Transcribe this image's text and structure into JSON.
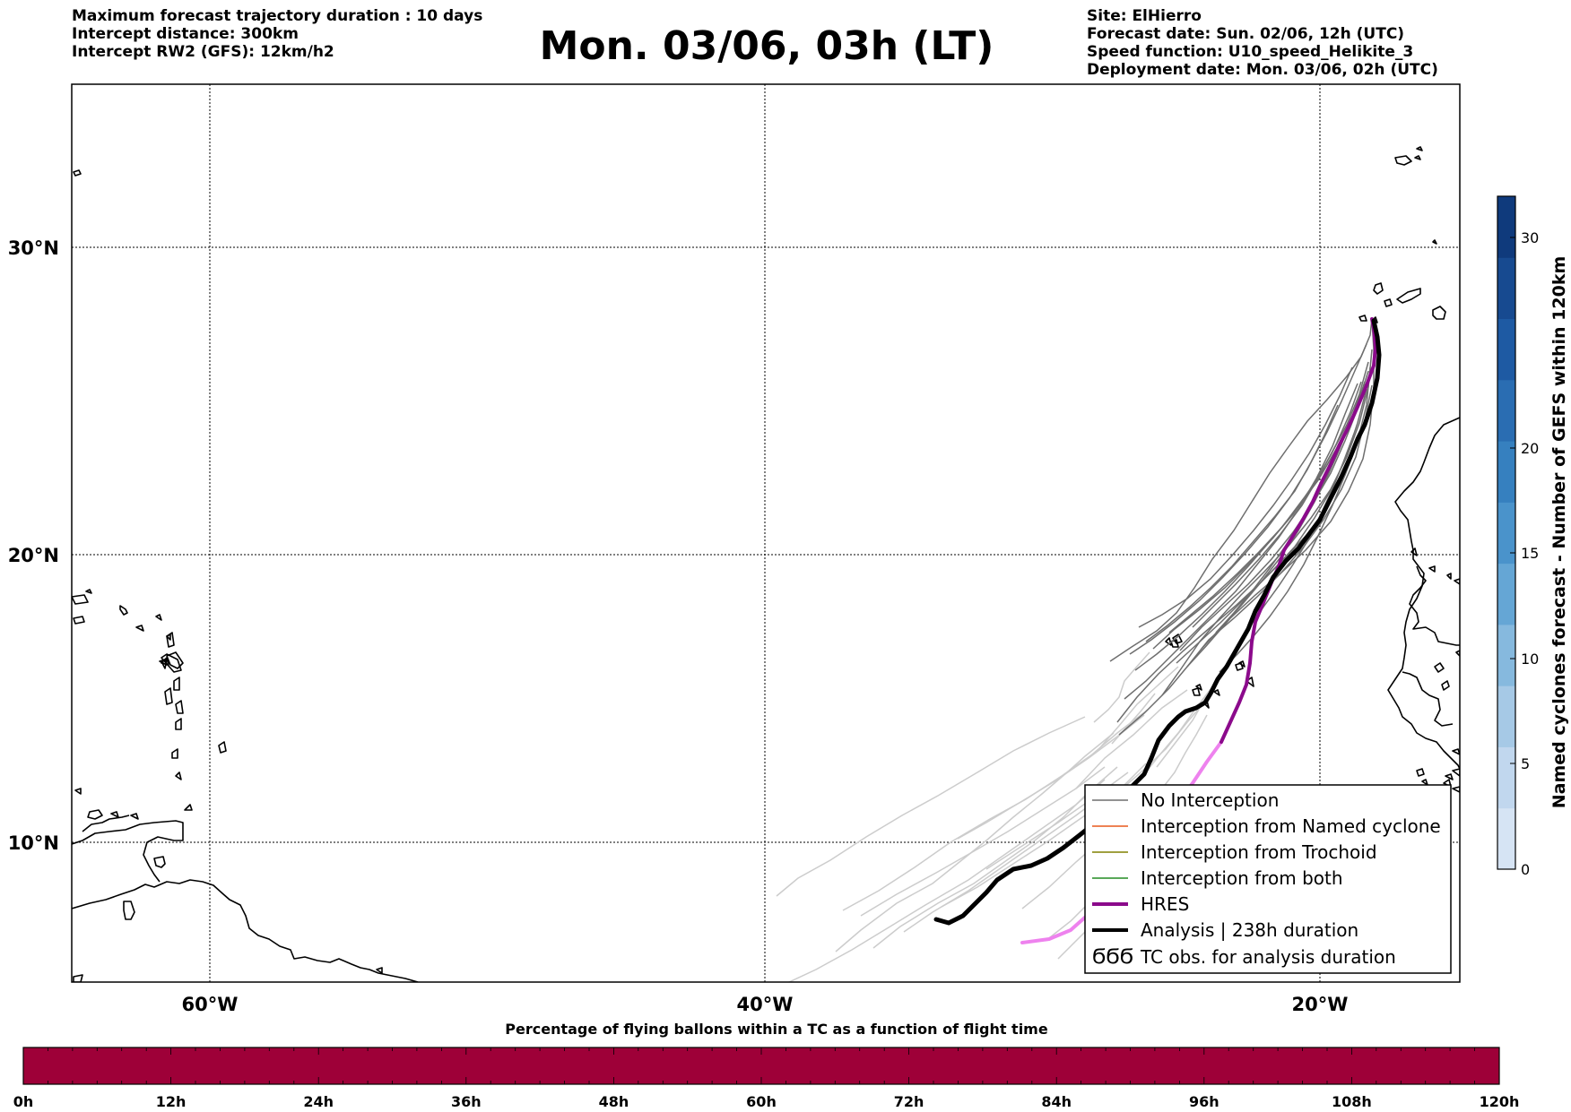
{
  "header": {
    "left": [
      "Maximum forecast trajectory duration : 10 days",
      "Intercept distance: 300km",
      "Intercept RW2 (GFS):  12km/h2"
    ],
    "right": [
      "Site: ElHierro",
      "Forecast date: Sun. 02/06, 12h (UTC)",
      "Speed function: U10_speed_Helikite_3",
      "Deployment date: Mon. 03/06, 02h (UTC)"
    ],
    "title": "Mon. 03/06, 03h (LT)"
  },
  "map": {
    "lat_labels": [
      "30°N",
      "20°N",
      "10°N"
    ],
    "lon_labels": [
      "60°W",
      "40°W",
      "20°W"
    ],
    "grid": "dotted",
    "colors": {
      "no_interception": "#6e6e6e",
      "older_tracks": "#cccccc",
      "named_cyclone": "#e8581c",
      "trochoid": "#808000",
      "both": "#228b22",
      "hres": "#8b0a8b",
      "hres_early": "#ee82ee",
      "analysis": "#000000"
    }
  },
  "legend": {
    "items": [
      {
        "label": "No Interception",
        "style": "gray-line"
      },
      {
        "label": "Interception from Named cyclone",
        "style": "orange-line"
      },
      {
        "label": "Interception from Trochoid",
        "style": "olive-line"
      },
      {
        "label": "Interception from both",
        "style": "green-line"
      },
      {
        "label": "HRES",
        "style": "purple-thick"
      },
      {
        "label": "Analysis | 238h duration",
        "style": "black-thick"
      },
      {
        "label": "TC obs. for analysis duration",
        "style": "tc-symbols"
      }
    ],
    "tc_symbols": "ϬϬϬ"
  },
  "colorbar": {
    "label": "Named cyclones forecast - Number of GEFS within 120km",
    "ticks": [
      "0",
      "5",
      "10",
      "15",
      "20",
      "30"
    ],
    "colors": [
      "#d6e4f4",
      "#c1d7ee",
      "#a6c9e6",
      "#86b9de",
      "#65a6d5",
      "#4a93cb",
      "#3680bf",
      "#2a6db2",
      "#1e5aa3",
      "#174a90",
      "#0f3a7c"
    ]
  },
  "progress": {
    "title": "Percentage of flying ballons within a TC as a function of flight time",
    "ticks": [
      "0h",
      "12h",
      "24h",
      "36h",
      "48h",
      "60h",
      "72h",
      "84h",
      "96h",
      "108h",
      "120h"
    ],
    "fill_color": "#9e0038"
  }
}
